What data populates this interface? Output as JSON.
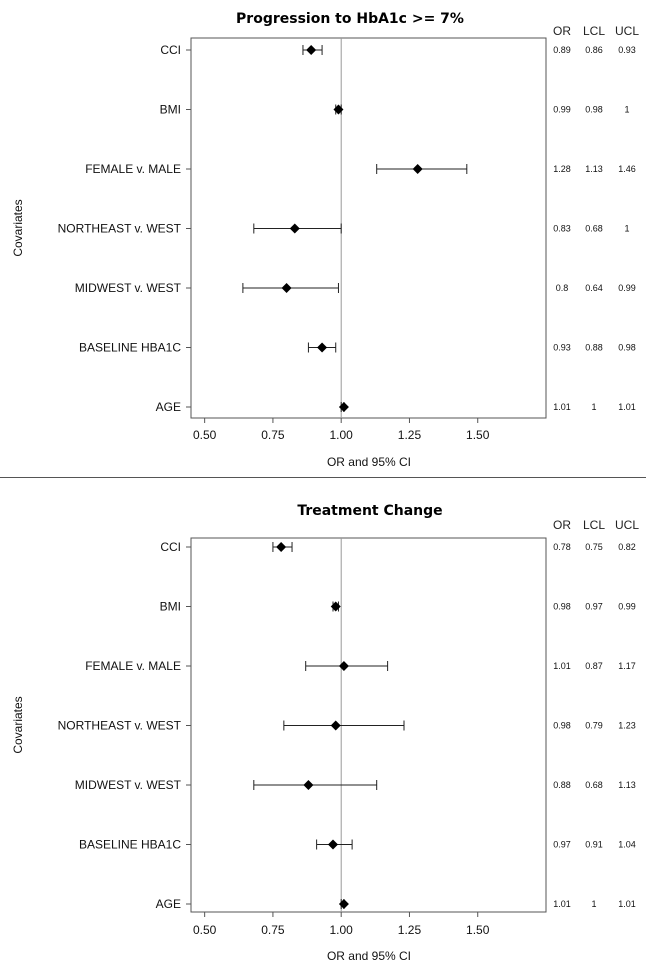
{
  "chart_data": [
    {
      "type": "forest",
      "title": "Progression to HbA1c >= 7%",
      "xlabel": "OR and 95% CI",
      "ylabel": "Covariates",
      "xlim": [
        0.45,
        1.75
      ],
      "xticks": [
        "0.50",
        "0.75",
        "1.00",
        "1.25",
        "1.50"
      ],
      "reference_line": 1.0,
      "columns": [
        "OR",
        "LCL",
        "UCL"
      ],
      "rows": [
        {
          "label": "CCI",
          "or": 0.89,
          "lcl": 0.86,
          "ucl": 0.93,
          "or_text": "0.89",
          "lcl_text": "0.86",
          "ucl_text": "0.93"
        },
        {
          "label": "BMI",
          "or": 0.99,
          "lcl": 0.98,
          "ucl": 1.0,
          "or_text": "0.99",
          "lcl_text": "0.98",
          "ucl_text": "1"
        },
        {
          "label": "FEMALE v. MALE",
          "or": 1.28,
          "lcl": 1.13,
          "ucl": 1.46,
          "or_text": "1.28",
          "lcl_text": "1.13",
          "ucl_text": "1.46"
        },
        {
          "label": "NORTHEAST v. WEST",
          "or": 0.83,
          "lcl": 0.68,
          "ucl": 1.0,
          "or_text": "0.83",
          "lcl_text": "0.68",
          "ucl_text": "1"
        },
        {
          "label": "MIDWEST v. WEST",
          "or": 0.8,
          "lcl": 0.64,
          "ucl": 0.99,
          "or_text": "0.8",
          "lcl_text": "0.64",
          "ucl_text": "0.99"
        },
        {
          "label": "BASELINE HBA1C",
          "or": 0.93,
          "lcl": 0.88,
          "ucl": 0.98,
          "or_text": "0.93",
          "lcl_text": "0.88",
          "ucl_text": "0.98"
        },
        {
          "label": "AGE",
          "or": 1.01,
          "lcl": 1.0,
          "ucl": 1.01,
          "or_text": "1.01",
          "lcl_text": "1",
          "ucl_text": "1.01"
        }
      ]
    },
    {
      "type": "forest",
      "title": "Treatment Change",
      "xlabel": "OR and 95% CI",
      "ylabel": "Covariates",
      "xlim": [
        0.45,
        1.75
      ],
      "xticks": [
        "0.50",
        "0.75",
        "1.00",
        "1.25",
        "1.50"
      ],
      "reference_line": 1.0,
      "columns": [
        "OR",
        "LCL",
        "UCL"
      ],
      "rows": [
        {
          "label": "CCI",
          "or": 0.78,
          "lcl": 0.75,
          "ucl": 0.82,
          "or_text": "0.78",
          "lcl_text": "0.75",
          "ucl_text": "0.82"
        },
        {
          "label": "BMI",
          "or": 0.98,
          "lcl": 0.97,
          "ucl": 0.99,
          "or_text": "0.98",
          "lcl_text": "0.97",
          "ucl_text": "0.99"
        },
        {
          "label": "FEMALE v. MALE",
          "or": 1.01,
          "lcl": 0.87,
          "ucl": 1.17,
          "or_text": "1.01",
          "lcl_text": "0.87",
          "ucl_text": "1.17"
        },
        {
          "label": "NORTHEAST v. WEST",
          "or": 0.98,
          "lcl": 0.79,
          "ucl": 1.23,
          "or_text": "0.98",
          "lcl_text": "0.79",
          "ucl_text": "1.23"
        },
        {
          "label": "MIDWEST v. WEST",
          "or": 0.88,
          "lcl": 0.68,
          "ucl": 1.13,
          "or_text": "0.88",
          "lcl_text": "0.68",
          "ucl_text": "1.13"
        },
        {
          "label": "BASELINE HBA1C",
          "or": 0.97,
          "lcl": 0.91,
          "ucl": 1.04,
          "or_text": "0.97",
          "lcl_text": "0.91",
          "ucl_text": "1.04"
        },
        {
          "label": "AGE",
          "or": 1.01,
          "lcl": 1.0,
          "ucl": 1.01,
          "or_text": "1.01",
          "lcl_text": "1",
          "ucl_text": "1.01"
        }
      ]
    }
  ]
}
